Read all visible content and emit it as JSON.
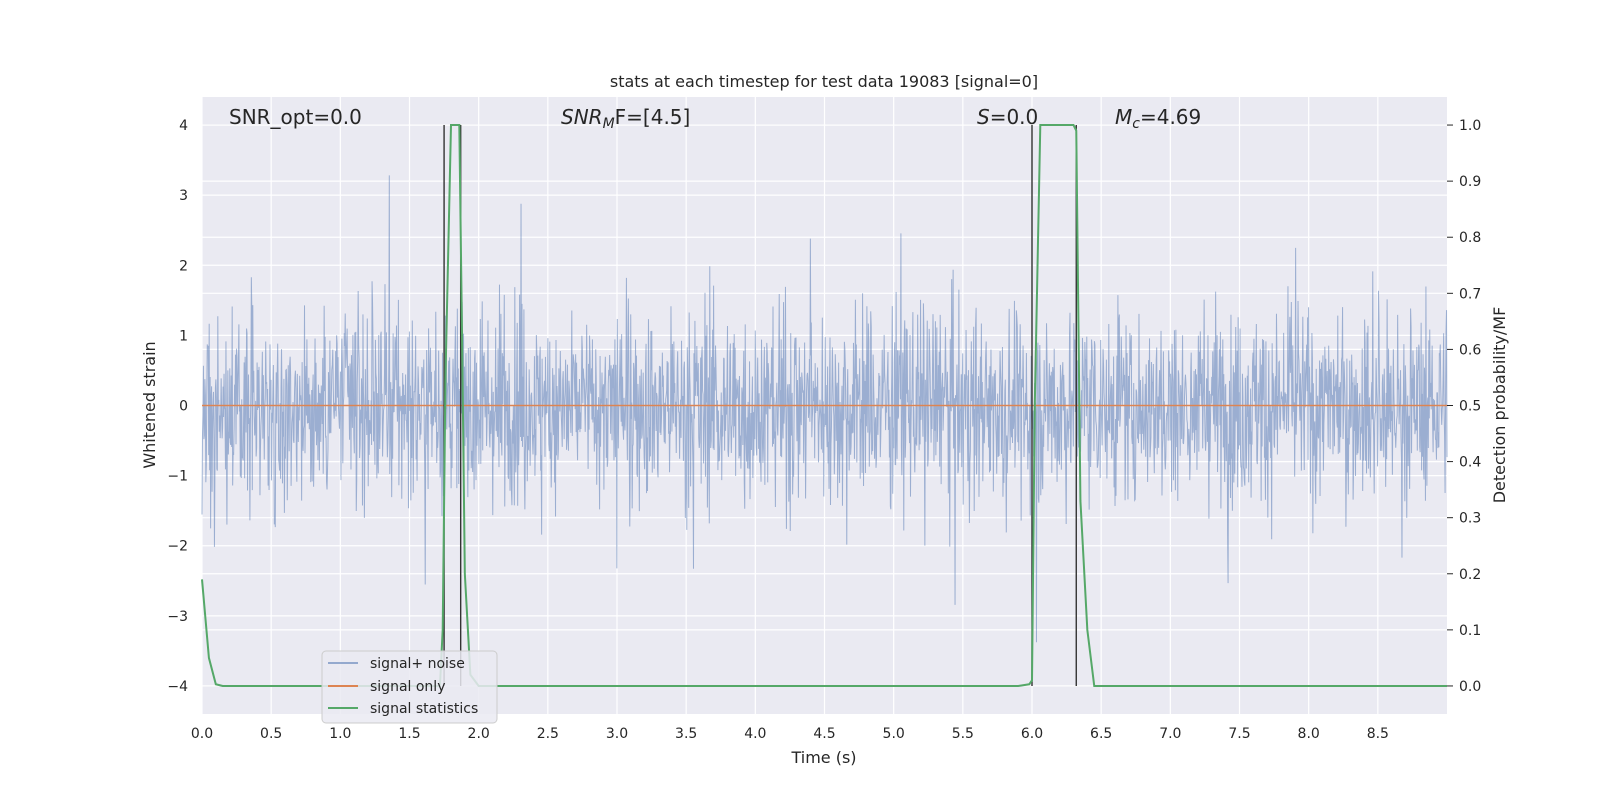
{
  "chart_data": {
    "type": "line",
    "title": "stats at each timestep for test data 19083 [signal=0]",
    "xlabel": "Time (s)",
    "ylabel": "Whitened strain",
    "y2label": "Detection probability/MF",
    "xlim": [
      0.0,
      9.0
    ],
    "ylim": [
      -4.4,
      4.4
    ],
    "y2lim": [
      -0.05,
      1.05
    ],
    "x_ticks": [
      0.0,
      0.5,
      1.0,
      1.5,
      2.0,
      2.5,
      3.0,
      3.5,
      4.0,
      4.5,
      5.0,
      5.5,
      6.0,
      6.5,
      7.0,
      7.5,
      8.0,
      8.5
    ],
    "y_ticks": [
      -4,
      -3,
      -2,
      -1,
      0,
      1,
      2,
      3,
      4
    ],
    "y2_ticks": [
      0.0,
      0.1,
      0.2,
      0.3,
      0.4,
      0.5,
      0.6,
      0.7,
      0.8,
      0.9,
      1.0
    ],
    "grid": true,
    "legend_position": "lower-left",
    "colors": {
      "background": "#eaeaf2",
      "noise": "#4c72b0",
      "signal_only": "#dd8452",
      "statistics": "#55a868",
      "marker": "#333333"
    },
    "annotations": {
      "snr_opt": "SNR_opt=0.0",
      "snr_mf_main": "SNR",
      "snr_mf_sub": "M",
      "snr_mf_tail": "F=[4.5]",
      "s_italic": "S",
      "s_value": "=0.0",
      "mc_main": "M",
      "mc_sub": "c",
      "mc_value": "=4.69"
    },
    "series": [
      {
        "name": "signal+ noise",
        "description_kind": "whitened noise trace",
        "envelope_core": 1.55,
        "envelope_peak": 3.5
      },
      {
        "name": "signal only",
        "values_constant": 0.0
      },
      {
        "name": "signal statistics",
        "axis": "right",
        "x": [
          0.0,
          0.05,
          0.1,
          0.15,
          0.2,
          0.5,
          1.0,
          1.5,
          1.72,
          1.74,
          1.76,
          1.8,
          1.82,
          1.86,
          1.88,
          1.9,
          1.94,
          2.0,
          2.1,
          3.0,
          4.0,
          5.0,
          5.9,
          5.98,
          6.0,
          6.02,
          6.06,
          6.1,
          6.3,
          6.32,
          6.35,
          6.4,
          6.45,
          7.0,
          8.0,
          9.0
        ],
        "y": [
          0.19,
          0.05,
          0.003,
          0.0,
          0.0,
          0.0,
          0.0,
          0.0,
          0.0,
          0.1,
          0.55,
          1.0,
          1.0,
          1.0,
          0.62,
          0.2,
          0.02,
          0.0,
          0.0,
          0.0,
          0.0,
          0.0,
          0.0,
          0.003,
          0.01,
          0.5,
          1.0,
          1.0,
          1.0,
          0.99,
          0.33,
          0.1,
          0.0,
          0.0,
          0.0,
          0.0
        ]
      }
    ],
    "markers_x": [
      1.75,
      1.87,
      6.0,
      6.32
    ],
    "legend": {
      "entries": [
        "signal+ noise",
        "signal only",
        "signal statistics"
      ]
    }
  }
}
